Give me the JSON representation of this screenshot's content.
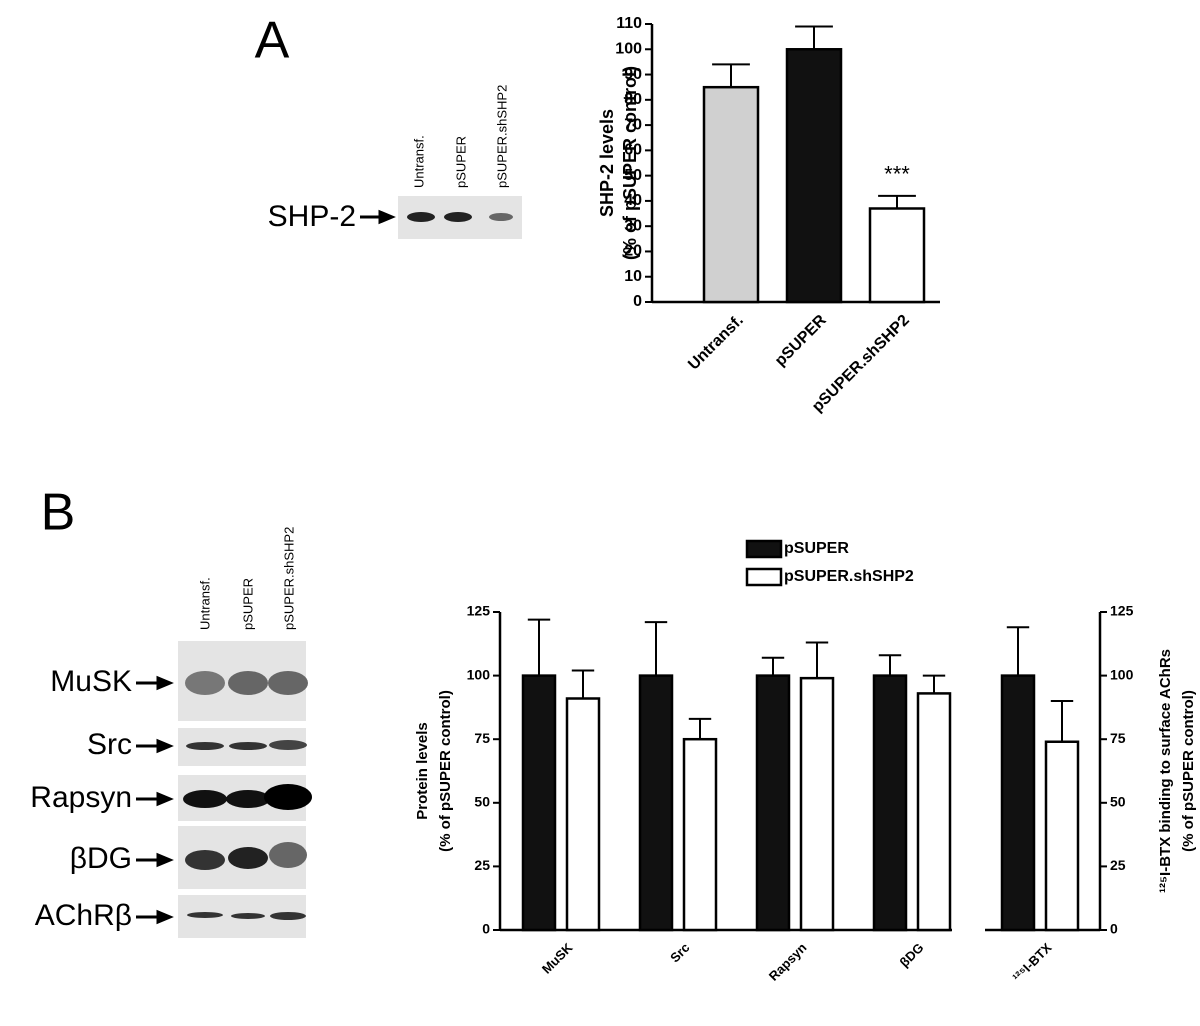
{
  "panels": [
    "A",
    "B"
  ],
  "blot_a": {
    "lanes": [
      "Untransf.",
      "pSUPER",
      "pSUPER.shSHP2"
    ],
    "bands": [
      "SHP-2"
    ]
  },
  "blot_b": {
    "lanes": [
      "Untransf.",
      "pSUPER",
      "pSUPER.shSHP2"
    ],
    "bands": [
      "MuSK",
      "Src",
      "Rapsyn",
      "βDG",
      "AChRβ"
    ]
  },
  "chart_data": [
    {
      "type": "bar",
      "ylabel": [
        "SHP-2 levels",
        "(% of pSUPER control)"
      ],
      "categories": [
        "Untransf.",
        "pSUPER",
        "pSUPER.shSHP2"
      ],
      "values": [
        85,
        100,
        37
      ],
      "errors": [
        9,
        9,
        5
      ],
      "colors": [
        "#d0d0d0",
        "#111111",
        "#ffffff"
      ],
      "annotation": "***",
      "ylim": [
        0,
        110
      ],
      "yticks": [
        0,
        10,
        20,
        30,
        40,
        50,
        60,
        70,
        80,
        90,
        100,
        110
      ]
    },
    {
      "type": "grouped-bar",
      "ylabel": [
        "Protein levels",
        "(% of pSUPER control)"
      ],
      "y2label": [
        "¹²⁵I-BTX binding to surface AChRs",
        "(% of pSUPER control)"
      ],
      "categories": [
        "MuSK",
        "Src",
        "Rapsyn",
        "βDG",
        "¹²⁵I-BTX"
      ],
      "series": [
        {
          "name": "pSUPER",
          "color": "#111111",
          "values": [
            100,
            100,
            100,
            100,
            100
          ],
          "errors": [
            22,
            21,
            7,
            8,
            19
          ]
        },
        {
          "name": "pSUPER.shSHP2",
          "color": "#ffffff",
          "values": [
            91,
            75,
            99,
            93,
            74
          ],
          "errors": [
            11,
            8,
            14,
            7,
            16
          ]
        }
      ],
      "ylim": [
        0,
        125
      ],
      "yticks": [
        0,
        25,
        50,
        75,
        100,
        125
      ],
      "y2lim": [
        0,
        125
      ],
      "y2ticks": [
        0,
        25,
        50,
        75,
        100,
        125
      ],
      "legend": "top"
    }
  ]
}
